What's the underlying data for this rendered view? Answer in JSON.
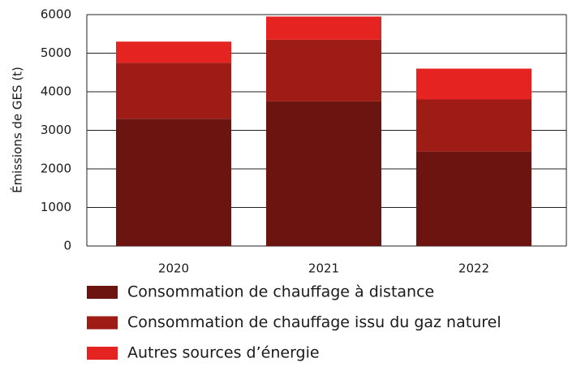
{
  "chart_data": {
    "type": "bar",
    "stacked": true,
    "y_label": "Émissions de GES (t)",
    "categories": [
      "2020",
      "2021",
      "2022"
    ],
    "series": [
      {
        "name": "Consommation de chauffage à distance",
        "color": "#6b1410",
        "values": [
          3300,
          3750,
          2450
        ]
      },
      {
        "name": "Consommation de chauffage issu du gaz naturel",
        "color": "#9e1b16",
        "values": [
          1450,
          1600,
          1350
        ]
      },
      {
        "name": "Autres sources d’énergie",
        "color": "#e52421",
        "values": [
          550,
          600,
          800
        ]
      }
    ],
    "ylim": [
      0,
      6000
    ],
    "yticks": [
      0,
      1000,
      2000,
      3000,
      4000,
      5000,
      6000
    ],
    "grid": true
  }
}
